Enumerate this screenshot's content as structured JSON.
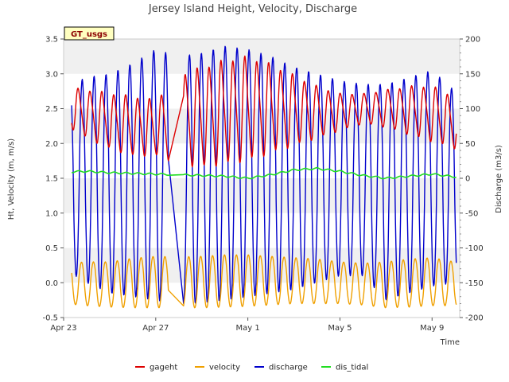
{
  "chart_data": {
    "type": "line",
    "title": "Jersey Island Height, Velocity, Discharge",
    "badge": "GT_usgs",
    "xlabel": "Time",
    "ylabel_left": "Ht, Velocity (m, m/s)",
    "ylabel_right": "Discharge (m3/s)",
    "ylim_left": [
      -0.5,
      3.5
    ],
    "ylim_right": [
      -200,
      200
    ],
    "xlim_days": [
      0,
      17.2
    ],
    "left_ticks": [
      "-0.5",
      "0.0",
      "0.5",
      "1.0",
      "1.5",
      "2.0",
      "2.5",
      "3.0",
      "3.5"
    ],
    "left_tick_values": [
      -0.5,
      0.0,
      0.5,
      1.0,
      1.5,
      2.0,
      2.5,
      3.0,
      3.5
    ],
    "right_ticks": [
      "-200",
      "-150",
      "-100",
      "-50",
      "0",
      "50",
      "100",
      "150",
      "200"
    ],
    "right_tick_values": [
      -200,
      -150,
      -100,
      -50,
      0,
      50,
      100,
      150,
      200
    ],
    "x_ticks": [
      "Apr 23",
      "Apr 27",
      "May 1",
      "May 5",
      "May 9"
    ],
    "x_tick_days": [
      0,
      4,
      8,
      12,
      16
    ],
    "data_gap_days": [
      4.55,
      5.2
    ],
    "series": [
      {
        "name": "gageht",
        "color": "#dd0000",
        "axis": "left",
        "x_days": [
          0,
          1,
          2,
          3,
          4,
          5,
          6,
          7,
          8,
          9,
          10,
          11,
          12,
          13,
          14,
          15,
          16,
          17
        ],
        "high": [
          2.8,
          2.75,
          2.7,
          2.65,
          2.6,
          2.95,
          3.05,
          3.15,
          3.2,
          3.1,
          2.95,
          2.8,
          2.7,
          2.7,
          2.75,
          2.8,
          2.8,
          2.65
        ],
        "low": [
          2.3,
          2.1,
          1.95,
          1.85,
          1.85,
          1.75,
          1.7,
          1.75,
          1.8,
          1.9,
          2.0,
          2.1,
          2.2,
          2.3,
          2.25,
          2.15,
          2.05,
          1.95
        ]
      },
      {
        "name": "velocity",
        "color": "#f0a000",
        "axis": "left",
        "x_days": [
          0,
          1,
          2,
          3,
          4,
          5,
          6,
          7,
          8,
          9,
          10,
          11,
          12,
          13,
          14,
          15,
          16,
          17
        ],
        "high": [
          0.28,
          0.3,
          0.3,
          0.35,
          0.38,
          0.37,
          0.38,
          0.4,
          0.4,
          0.38,
          0.36,
          0.34,
          0.3,
          0.28,
          0.3,
          0.34,
          0.36,
          0.3
        ],
        "low": [
          -0.3,
          -0.33,
          -0.35,
          -0.36,
          -0.36,
          -0.36,
          -0.36,
          -0.35,
          -0.34,
          -0.32,
          -0.3,
          -0.3,
          -0.3,
          -0.32,
          -0.36,
          -0.35,
          -0.33,
          -0.33
        ]
      },
      {
        "name": "discharge",
        "color": "#0000cc",
        "axis": "right",
        "x_days": [
          0,
          1,
          2,
          3,
          4,
          5,
          6,
          7,
          8,
          9,
          10,
          11,
          12,
          13,
          14,
          15,
          16,
          17
        ],
        "high": [
          130,
          145,
          150,
          165,
          185,
          175,
          180,
          190,
          185,
          175,
          160,
          150,
          140,
          135,
          135,
          145,
          155,
          125
        ],
        "low": [
          -130,
          -150,
          -165,
          -170,
          -175,
          -180,
          -180,
          -175,
          -170,
          -165,
          -160,
          -150,
          -140,
          -140,
          -175,
          -165,
          -155,
          -150
        ]
      },
      {
        "name": "dis_tidal",
        "color": "#22dd22",
        "axis": "right",
        "x_days": [
          0,
          1,
          2,
          3,
          4,
          5,
          6,
          7,
          8,
          9,
          10,
          11,
          12,
          13,
          14,
          15,
          16,
          17
        ],
        "y": [
          9,
          10,
          8,
          7,
          6,
          5,
          4,
          3,
          0,
          5,
          12,
          14,
          10,
          4,
          0,
          3,
          6,
          2
        ]
      }
    ]
  }
}
